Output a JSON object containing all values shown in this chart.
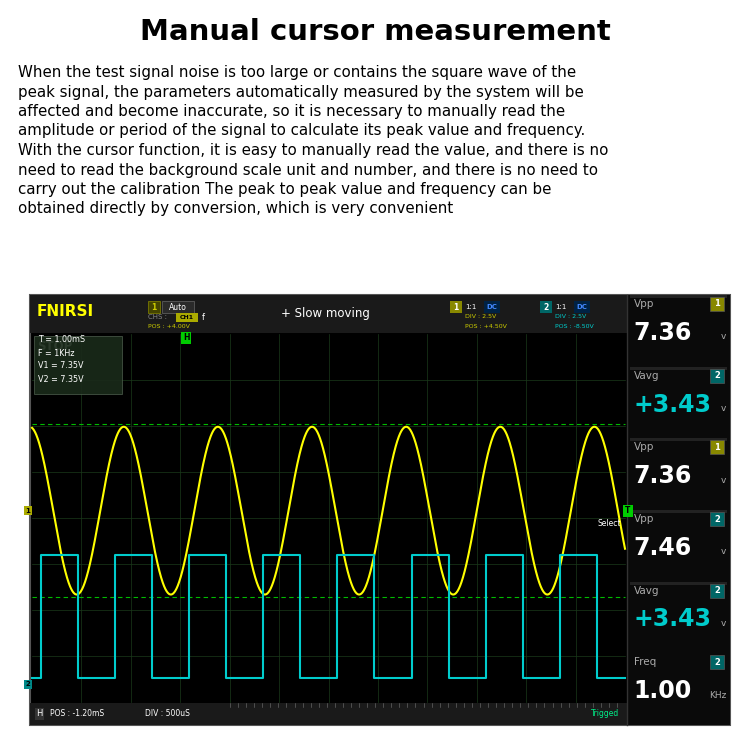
{
  "title": "Manual cursor measurement",
  "bg_color": "#ffffff",
  "title_color": "#000000",
  "body_color": "#000000",
  "osc_bg": "#000000",
  "grid_color": "#1a3a1a",
  "sine_color": "#ffff00",
  "square_color": "#00cccc",
  "fnirsi_color": "#ffff00",
  "ch1_label_bg": "#aaaa00",
  "ch2_label_bg": "#008888",
  "ch1_val_color": "#ffffff",
  "ch2_val_color": "#00cccc",
  "cursor_color": "#00cc00",
  "top_bar_bg": "#1a1a1a",
  "bot_bar_bg": "#1a1a1a",
  "right_panel_bg": "#0a0a0a",
  "meas_box_bg": "#1a2a1a",
  "body_lines": [
    "When the test signal noise is too large or contains the square wave of the",
    "peak signal, the parameters automatically measured by the system will be",
    "affected and become inaccurate, so it is necessary to manually read the",
    "amplitude or period of the signal to calculate its peak value and frequency.",
    "With the cursor function, it is easy to manually read the value, and there is no",
    "need to read the background scale unit and number, and there is no need to",
    "carry out the calibration The peak to peak value and frequency can be",
    "obtained directly by conversion, which is very convenient"
  ],
  "rp_items": [
    {
      "label": "Vpp",
      "ch": "1",
      "ch_bg": "#888800",
      "value": "7.36",
      "unit": "v",
      "val_color": "#ffffff"
    },
    {
      "label": "Vavg",
      "ch": "2",
      "ch_bg": "#006666",
      "value": "+3.43",
      "unit": "v",
      "val_color": "#00cccc"
    },
    {
      "label": "Vpp",
      "ch": "1",
      "ch_bg": "#888800",
      "value": "7.36",
      "unit": "v",
      "val_color": "#ffffff"
    },
    {
      "label": "Vpp",
      "ch": "2",
      "ch_bg": "#006666",
      "value": "7.46",
      "unit": "v",
      "val_color": "#ffffff"
    },
    {
      "label": "Vavg",
      "ch": "2",
      "ch_bg": "#006666",
      "value": "+3.43",
      "unit": "v",
      "val_color": "#00cccc"
    },
    {
      "label": "Freq",
      "ch": "2",
      "ch_bg": "#006666",
      "value": "1.00",
      "unit": "KHz",
      "val_color": "#ffffff"
    }
  ]
}
